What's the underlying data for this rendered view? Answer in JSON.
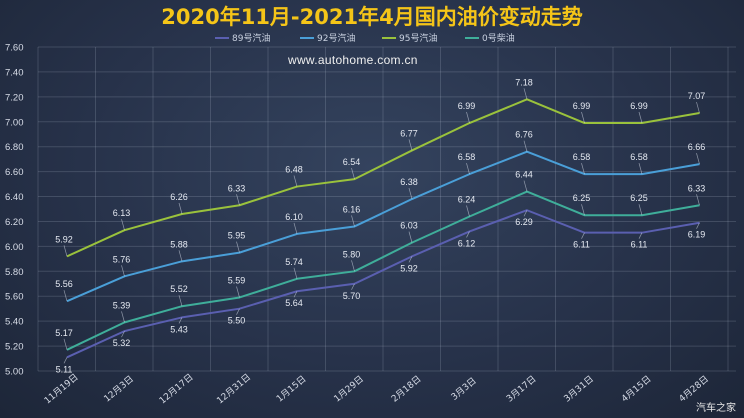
{
  "chart_data": {
    "type": "line",
    "title": "2020年11月-2021年4月国内油价变动走势",
    "annotation": "www.autohome.com.cn",
    "watermark": "汽车之家",
    "xlabel": "",
    "ylabel": "",
    "categories": [
      "11月19日",
      "12月3日",
      "12月17日",
      "12月31日",
      "1月15日",
      "1月29日",
      "2月18日",
      "3月3日",
      "3月17日",
      "3月31日",
      "4月15日",
      "4月28日"
    ],
    "ylim": [
      5.0,
      7.6
    ],
    "yticks": [
      "5.00",
      "5.20",
      "5.40",
      "5.60",
      "5.80",
      "6.00",
      "6.20",
      "6.40",
      "6.60",
      "6.80",
      "7.00",
      "7.20",
      "7.40",
      "7.60"
    ],
    "grid": true,
    "legend_position": "top",
    "series": [
      {
        "name": "89号汽油",
        "color": "#5a5fb0",
        "label_position": "below",
        "values": [
          5.11,
          5.32,
          5.43,
          5.5,
          5.64,
          5.7,
          5.92,
          6.12,
          6.29,
          6.11,
          6.11,
          6.19
        ],
        "labels": [
          "5.11",
          "5.32",
          "5.43",
          "5.50",
          "5.64",
          "5.70",
          "5.92",
          "6.12",
          "6.29",
          "6.11",
          "6.11",
          "6.19"
        ]
      },
      {
        "name": "92号汽油",
        "color": "#4a9fd8",
        "label_position": "above",
        "values": [
          5.56,
          5.76,
          5.88,
          5.95,
          6.1,
          6.16,
          6.38,
          6.58,
          6.76,
          6.58,
          6.58,
          6.66
        ],
        "labels": [
          "5.56",
          "5.76",
          "5.88",
          "5.95",
          "6.10",
          "6.16",
          "6.38",
          "6.58",
          "6.76",
          "6.58",
          "6.58",
          "6.66"
        ]
      },
      {
        "name": "95号汽油",
        "color": "#9ac23c",
        "label_position": "above",
        "values": [
          5.92,
          6.13,
          6.26,
          6.33,
          6.48,
          6.54,
          6.77,
          6.99,
          7.18,
          6.99,
          6.99,
          7.07
        ],
        "labels": [
          "5.92",
          "6.13",
          "6.26",
          "6.33",
          "6.48",
          "6.54",
          "6.77",
          "6.99",
          "7.18",
          "6.99",
          "6.99",
          "7.07"
        ]
      },
      {
        "name": "0号柴油",
        "color": "#3fae9a",
        "label_position": "above",
        "values": [
          5.17,
          5.39,
          5.52,
          5.59,
          5.74,
          5.8,
          6.03,
          6.24,
          6.44,
          6.25,
          6.25,
          6.33
        ],
        "labels": [
          "5.17",
          "5.39",
          "5.52",
          "5.59",
          "5.74",
          "5.80",
          "6.03",
          "6.24",
          "6.44",
          "6.25",
          "6.25",
          "6.33"
        ]
      }
    ]
  }
}
